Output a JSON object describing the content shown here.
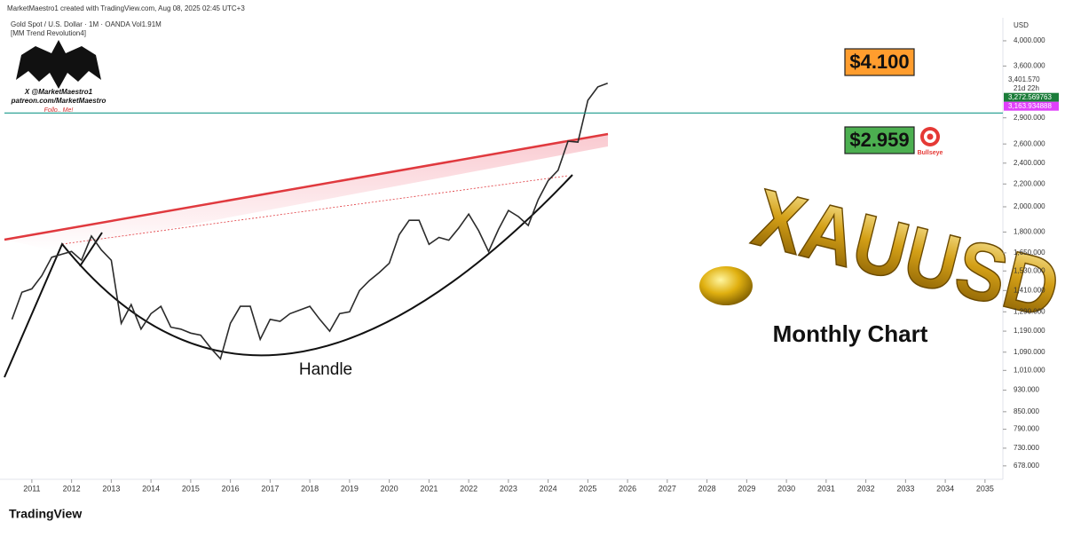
{
  "header": {
    "created": "MarketMaestro1 created with TradingView.com, Aug 08, 2025 02:45 UTC+3",
    "symbol": "Gold Spot / U.S. Dollar · 1M · OANDA  Vol1.91M",
    "indicator": "[MM Trend Revolution4]"
  },
  "logo": {
    "handle": "X @MarketMaestro1",
    "site": "patreon.com/MarketMaestro",
    "follow": "Follo.. Me!"
  },
  "chart_data": {
    "type": "line",
    "log_scale": true,
    "color": "#2b2b2b",
    "x": [
      2010.5,
      2010.75,
      2011.0,
      2011.25,
      2011.5,
      2011.75,
      2012.0,
      2012.25,
      2012.5,
      2012.75,
      2013.0,
      2013.25,
      2013.5,
      2013.75,
      2014.0,
      2014.25,
      2014.5,
      2014.75,
      2015.0,
      2015.25,
      2015.5,
      2015.75,
      2016.0,
      2016.25,
      2016.5,
      2016.75,
      2017.0,
      2017.25,
      2017.5,
      2017.75,
      2018.0,
      2018.25,
      2018.5,
      2018.75,
      2019.0,
      2019.25,
      2019.5,
      2019.75,
      2020.0,
      2020.25,
      2020.5,
      2020.75,
      2021.0,
      2021.25,
      2021.5,
      2021.75,
      2022.0,
      2022.25,
      2022.5,
      2022.75,
      2023.0,
      2023.25,
      2023.5,
      2023.75,
      2024.0,
      2024.25,
      2024.5,
      2024.75,
      2025.0,
      2025.25,
      2025.5
    ],
    "values": [
      1250,
      1400,
      1420,
      1500,
      1620,
      1640,
      1660,
      1600,
      1770,
      1670,
      1600,
      1230,
      1330,
      1200,
      1280,
      1320,
      1210,
      1200,
      1180,
      1170,
      1110,
      1060,
      1230,
      1320,
      1320,
      1150,
      1250,
      1240,
      1280,
      1300,
      1320,
      1250,
      1190,
      1280,
      1290,
      1410,
      1470,
      1520,
      1580,
      1780,
      1890,
      1890,
      1710,
      1760,
      1740,
      1830,
      1940,
      1810,
      1660,
      1820,
      1970,
      1920,
      1850,
      2060,
      2230,
      2330,
      2630,
      2620,
      3120,
      3300,
      3350
    ],
    "xlim": [
      2010.31,
      2035.45
    ],
    "ylim": [
      641,
      4404
    ],
    "xticks": [
      2011,
      2012,
      2013,
      2014,
      2015,
      2016,
      2017,
      2018,
      2019,
      2020,
      2021,
      2022,
      2023,
      2024,
      2025,
      2026,
      2027,
      2028,
      2029,
      2030,
      2031,
      2032,
      2033,
      2034,
      2035
    ],
    "yticks": [
      {
        "value": 678,
        "label": "678.000"
      },
      {
        "value": 730,
        "label": "730.000"
      },
      {
        "value": 790,
        "label": "790.000"
      },
      {
        "value": 850,
        "label": "850.000"
      },
      {
        "value": 930,
        "label": "930.000"
      },
      {
        "value": 1010,
        "label": "1,010.000"
      },
      {
        "value": 1090,
        "label": "1,090.000"
      },
      {
        "value": 1190,
        "label": "1,190.000"
      },
      {
        "value": 1290,
        "label": "1,290.000"
      },
      {
        "value": 1410,
        "label": "1,410.000"
      },
      {
        "value": 1530,
        "label": "1,530.000"
      },
      {
        "value": 1650,
        "label": "1,650.000"
      },
      {
        "value": 1800,
        "label": "1,800.000"
      },
      {
        "value": 2000,
        "label": "2,000.000"
      },
      {
        "value": 2200,
        "label": "2,200.000"
      },
      {
        "value": 2400,
        "label": "2,400.000"
      },
      {
        "value": 2600,
        "label": "2,600.000"
      },
      {
        "value": 2900,
        "label": "2,900.000"
      },
      {
        "value": 3600,
        "label": "3,600.000"
      },
      {
        "value": 4000,
        "label": "4,000.000"
      }
    ],
    "y_axis_label": "USD",
    "price_labels": [
      {
        "value": 3401.57,
        "label": "3,401.570"
      },
      {
        "value": 3272.569763,
        "label": "3,272.569763",
        "color": "#1b7d3a"
      },
      {
        "value": 3163.934888,
        "label": "3,163.934888",
        "color": "#e040fb"
      }
    ],
    "countdown": "21d 22h",
    "levels": [
      {
        "value": 4100,
        "label": "$4.100",
        "color": "#ff9d2e",
        "line": false
      },
      {
        "value": 2959,
        "label": "$2.959",
        "color": "#4caf50",
        "line": true
      }
    ],
    "annotations": {
      "handle": "Handle",
      "timeframe": "Monthly Chart",
      "symbol_art": "XAUUSD",
      "badge": "Bullseye"
    }
  },
  "footer": {
    "brand": "TradingView"
  }
}
